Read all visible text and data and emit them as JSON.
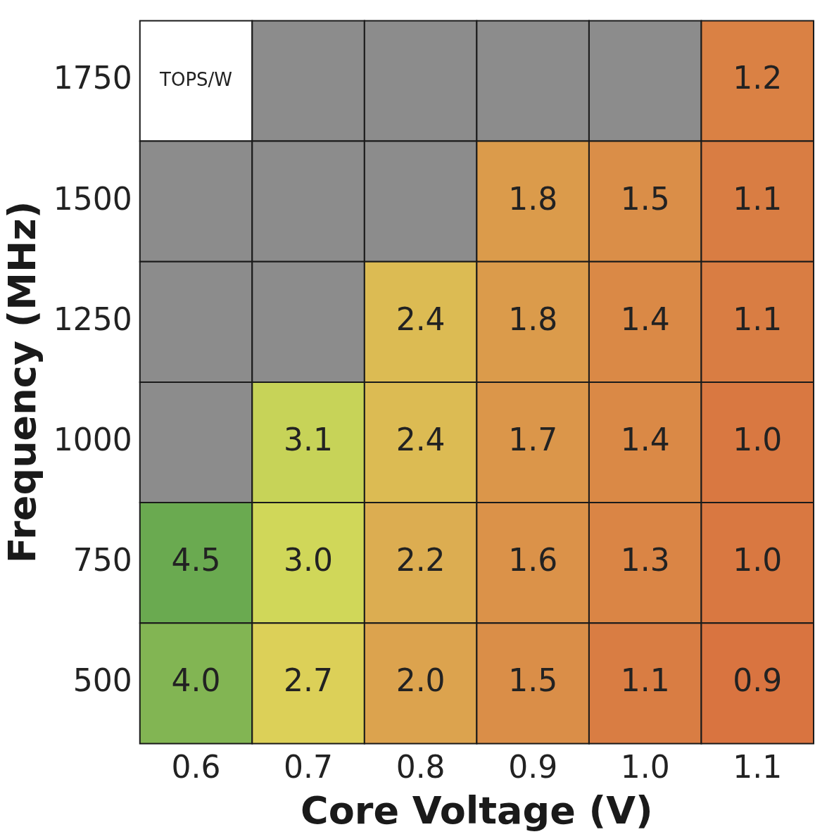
{
  "chart_data": {
    "type": "heatmap",
    "xlabel": "Core Voltage (V)",
    "ylabel": "Frequency (MHz)",
    "categories": [
      "0.6",
      "0.7",
      "0.8",
      "0.9",
      "1.0",
      "1.1"
    ],
    "y_categories": [
      "1750",
      "1500",
      "1250",
      "1000",
      "750",
      "500"
    ],
    "cells": [
      [
        null,
        null,
        null,
        null,
        null,
        1.2
      ],
      [
        null,
        null,
        null,
        1.8,
        1.5,
        1.1
      ],
      [
        null,
        null,
        2.4,
        1.8,
        1.4,
        1.1
      ],
      [
        null,
        3.1,
        2.4,
        1.7,
        1.4,
        1.0
      ],
      [
        4.5,
        3.0,
        2.2,
        1.6,
        1.3,
        1.0
      ],
      [
        4.0,
        2.7,
        2.0,
        1.5,
        1.1,
        0.9
      ]
    ],
    "cell_labels": [
      [
        "TOPS/W",
        null,
        null,
        null,
        null,
        "1.2"
      ],
      [
        null,
        null,
        null,
        "1.8",
        "1.5",
        "1.1"
      ],
      [
        null,
        null,
        "2.4",
        "1.8",
        "1.4",
        "1.1"
      ],
      [
        null,
        "3.1",
        "2.4",
        "1.7",
        "1.4",
        "1.0"
      ],
      [
        "4.5",
        "3.0",
        "2.2",
        "1.6",
        "1.3",
        "1.0"
      ],
      [
        "4.0",
        "2.7",
        "2.0",
        "1.5",
        "1.1",
        "0.9"
      ]
    ]
  }
}
